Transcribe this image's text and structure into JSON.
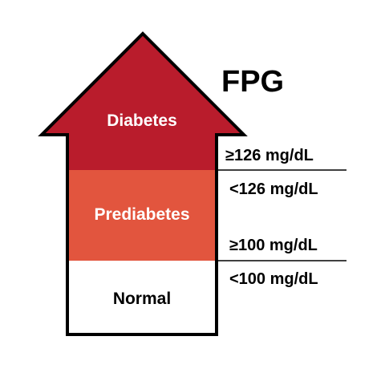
{
  "title": "FPG",
  "zones": {
    "diabetes": {
      "label": "Diabetes",
      "color": "#b91c2c",
      "text_color": "#ffffff"
    },
    "prediabetes": {
      "label": "Prediabetes",
      "color": "#e2553e",
      "text_color": "#ffffff"
    },
    "normal": {
      "label": "Normal",
      "color": "#ffffff",
      "text_color": "#000000"
    }
  },
  "thresholds": {
    "diabetes_lower": "≥126 mg/dL",
    "prediabetes_upper": "<126 mg/dL",
    "prediabetes_lower": "≥100 mg/dL",
    "normal_upper": "<100 mg/dL"
  },
  "colors": {
    "outline": "#000000",
    "divider": "#000000"
  }
}
